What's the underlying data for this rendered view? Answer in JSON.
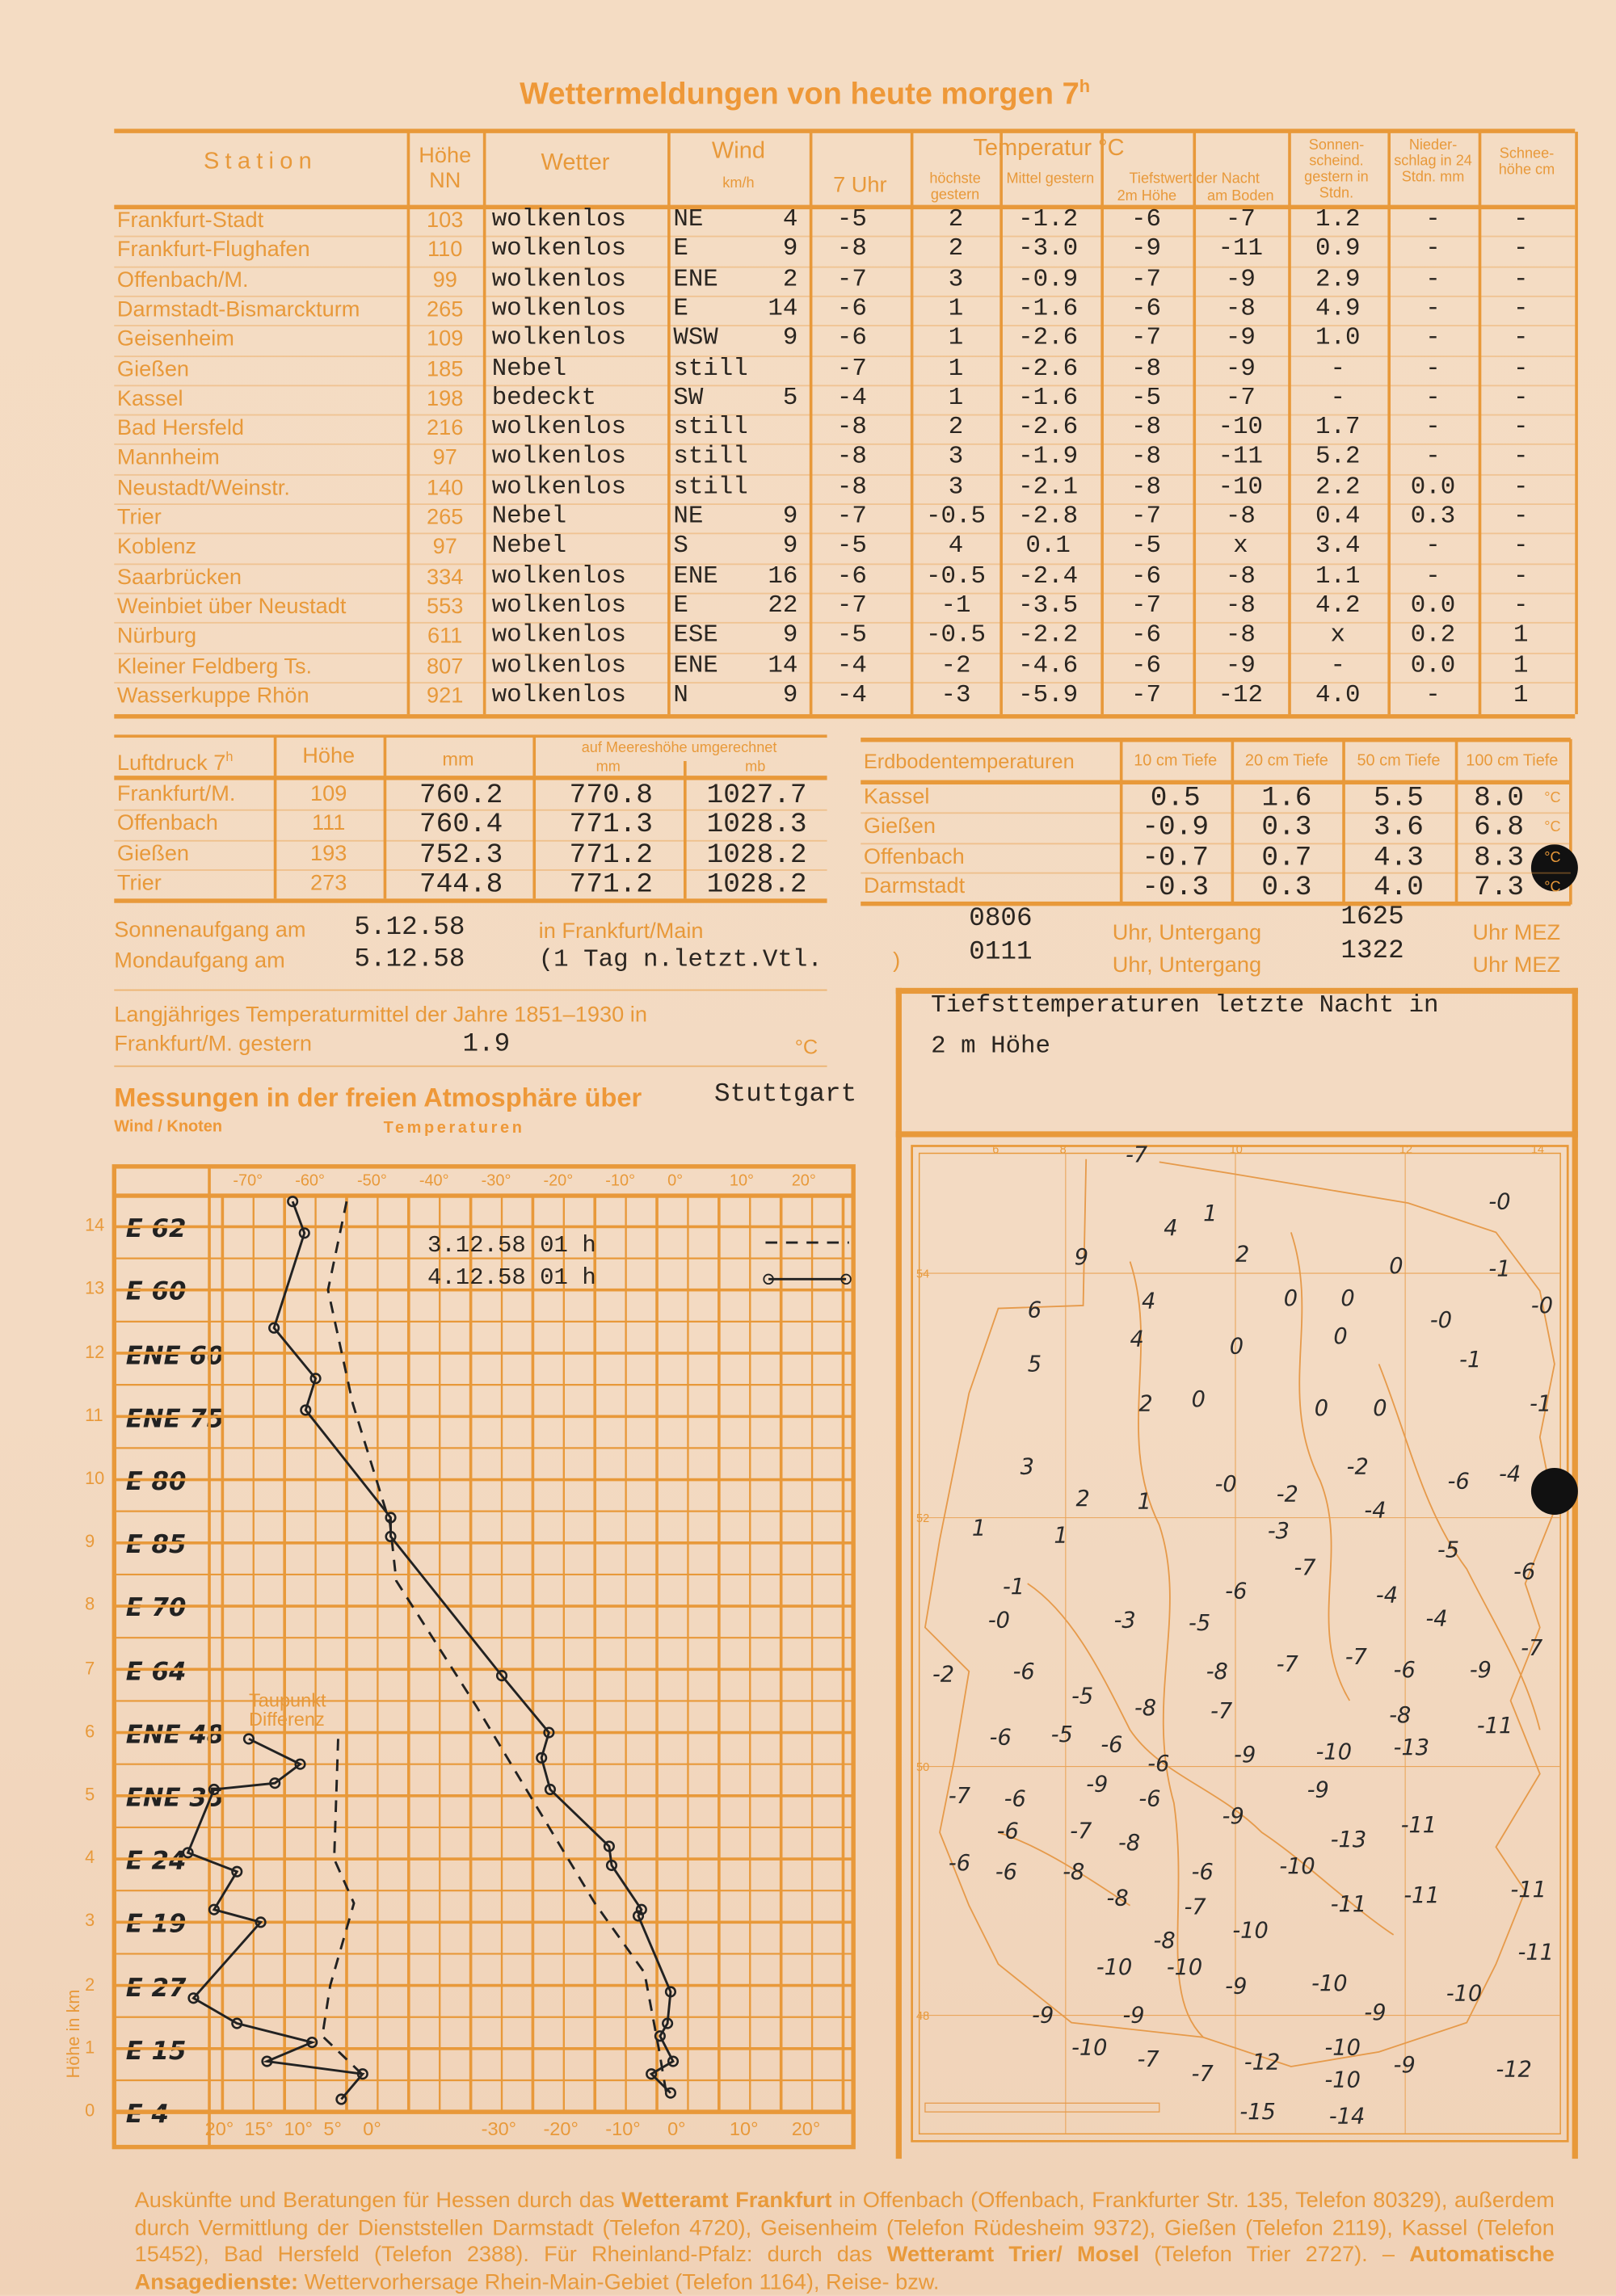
{
  "title": "Wettermeldungen von heute morgen 7",
  "title_sup": "h",
  "stations_table": {
    "headers": {
      "station": "Station",
      "hoehe": "Höhe NN",
      "wetter": "Wetter",
      "wind": "Wind",
      "wind_unit": "km/h",
      "temperatur": "Temperatur °C",
      "uhr7": "7 Uhr",
      "hoechste": "höchste gestern",
      "mittel": "Mittel gestern",
      "tiefstwert": "Tiefstwert der Nacht",
      "tief_2m": "2m Höhe",
      "tief_boden": "am Boden",
      "sonne": "Sonnen- scheind. gestern in Stdn.",
      "nieder": "Nieder- schlag in 24 Stdn. mm",
      "schnee": "Schnee- höhe cm"
    },
    "rows": [
      [
        "Frankfurt-Stadt",
        "103",
        "wolkenlos",
        "NE",
        "4",
        "-5",
        "2",
        "-1.2",
        "-6",
        "-7",
        "1.2",
        "-",
        "-"
      ],
      [
        "Frankfurt-Flughafen",
        "110",
        "wolkenlos",
        "E",
        "9",
        "-8",
        "2",
        "-3.0",
        "-9",
        "-11",
        "0.9",
        "-",
        "-"
      ],
      [
        "Offenbach/M.",
        "99",
        "wolkenlos",
        "ENE",
        "2",
        "-7",
        "3",
        "-0.9",
        "-7",
        "-9",
        "2.9",
        "-",
        "-"
      ],
      [
        "Darmstadt-Bismarckturm",
        "265",
        "wolkenlos",
        "E",
        "14",
        "-6",
        "1",
        "-1.6",
        "-6",
        "-8",
        "4.9",
        "-",
        "-"
      ],
      [
        "Geisenheim",
        "109",
        "wolkenlos",
        "WSW",
        "9",
        "-6",
        "1",
        "-2.6",
        "-7",
        "-9",
        "1.0",
        "-",
        "-"
      ],
      [
        "Gießen",
        "185",
        "Nebel",
        "still",
        "",
        "-7",
        "1",
        "-2.6",
        "-8",
        "-9",
        "-",
        "-",
        "-"
      ],
      [
        "Kassel",
        "198",
        "bedeckt",
        "SW",
        "5",
        "-4",
        "1",
        "-1.6",
        "-5",
        "-7",
        "-",
        "-",
        "-"
      ],
      [
        "Bad Hersfeld",
        "216",
        "wolkenlos",
        "still",
        "",
        "-8",
        "2",
        "-2.6",
        "-8",
        "-10",
        "1.7",
        "-",
        "-"
      ],
      [
        "Mannheim",
        "97",
        "wolkenlos",
        "still",
        "",
        "-8",
        "3",
        "-1.9",
        "-8",
        "-11",
        "5.2",
        "-",
        "-"
      ],
      [
        "Neustadt/Weinstr.",
        "140",
        "wolkenlos",
        "still",
        "",
        "-8",
        "3",
        "-2.1",
        "-8",
        "-10",
        "2.2",
        "0.0",
        "-"
      ],
      [
        "Trier",
        "265",
        "Nebel",
        "NE",
        "9",
        "-7",
        "-0.5",
        "-2.8",
        "-7",
        "-8",
        "0.4",
        "0.3",
        "-"
      ],
      [
        "Koblenz",
        "97",
        "Nebel",
        "S",
        "9",
        "-5",
        "4",
        "0.1",
        "-5",
        "x",
        "3.4",
        "-",
        "-"
      ],
      [
        "Saarbrücken",
        "334",
        "wolkenlos",
        "ENE",
        "16",
        "-6",
        "-0.5",
        "-2.4",
        "-6",
        "-8",
        "1.1",
        "-",
        "-"
      ],
      [
        "Weinbiet über Neustadt",
        "553",
        "wolkenlos",
        "E",
        "22",
        "-7",
        "-1",
        "-3.5",
        "-7",
        "-8",
        "4.2",
        "0.0",
        "-"
      ],
      [
        "Nürburg",
        "611",
        "wolkenlos",
        "ESE",
        "9",
        "-5",
        "-0.5",
        "-2.2",
        "-6",
        "-8",
        "x",
        "0.2",
        "1"
      ],
      [
        "Kleiner Feldberg Ts.",
        "807",
        "wolkenlos",
        "ENE",
        "14",
        "-4",
        "-2",
        "-4.6",
        "-6",
        "-9",
        "-",
        "0.0",
        "1"
      ],
      [
        "Wasserkuppe Rhön",
        "921",
        "wolkenlos",
        "N",
        "9",
        "-4",
        "-3",
        "-5.9",
        "-7",
        "-12",
        "4.0",
        "-",
        "1"
      ]
    ]
  },
  "luftdruck": {
    "headers": {
      "title": "Luftdruck 7",
      "title_sup": "h",
      "hoehe": "Höhe",
      "mm": "mm",
      "meer": "auf Meereshöhe umgerechnet",
      "meer_mm": "mm",
      "meer_mb": "mb"
    },
    "rows": [
      [
        "Frankfurt/M.",
        "109",
        "760.2",
        "770.8",
        "1027.7"
      ],
      [
        "Offenbach",
        "111",
        "760.4",
        "771.3",
        "1028.3"
      ],
      [
        "Gießen",
        "193",
        "752.3",
        "771.2",
        "1028.2"
      ],
      [
        "Trier",
        "273",
        "744.8",
        "771.2",
        "1028.2"
      ]
    ]
  },
  "erdboden": {
    "headers": {
      "title": "Erdbodentemperaturen",
      "t10": "10 cm Tiefe",
      "t20": "20 cm Tiefe",
      "t50": "50 cm Tiefe",
      "t100": "100 cm Tiefe"
    },
    "unit": "°C",
    "rows": [
      [
        "Kassel",
        "0.5",
        "1.6",
        "5.5",
        "8.0"
      ],
      [
        "Gießen",
        "-0.9",
        "0.3",
        "3.6",
        "6.8"
      ],
      [
        "Offenbach",
        "-0.7",
        "0.7",
        "4.3",
        "8.3"
      ],
      [
        "Darmstadt",
        "-0.3",
        "0.3",
        "4.0",
        "7.3"
      ]
    ]
  },
  "sun_moon": {
    "sonnenaufgang_label": "Sonnenaufgang am",
    "sonnenaufgang_date": "5.12.58",
    "in_frankfurt": "in Frankfurt/Main",
    "sun_rise": "0806",
    "untergang_label": "Uhr, Untergang",
    "sun_set": "1625",
    "mez": "Uhr MEZ",
    "mondaufgang_label": "Mondaufgang am",
    "mondaufgang_date": "5.12.58",
    "mond_note": "(1 Tag n.letzt.Vtl.",
    "mond_note_close": ")",
    "moon_rise": "0111",
    "moon_set": "1322"
  },
  "langjaehrig": {
    "line1": "Langjähriges Temperaturmittel der Jahre 1851–1930 in",
    "line2": "Frankfurt/M. gestern",
    "value": "1.9",
    "unit": "°C"
  },
  "atmosphere": {
    "title": "Messungen in der freien Atmosphäre über",
    "place": "Stuttgart",
    "wind_label": "Wind / Knoten",
    "temp_label": "Temperaturen",
    "taupunkt_label": "Taupunkt Differenz",
    "height_label": "Höhe in km",
    "legend_dashed": "3.12.58 01 h",
    "legend_solid": "4.12.58 01 h",
    "top_ticks": [
      "-70°",
      "-60°",
      "-50°",
      "-40°",
      "-30°",
      "-20°",
      "-10°",
      "0°",
      "10°",
      "20°"
    ],
    "bottom_ticks_dew": [
      "20°",
      "15°",
      "10°",
      "5°",
      "0°"
    ],
    "bottom_ticks_temp": [
      "-30°",
      "-20°",
      "-10°",
      "0°",
      "10°",
      "20°"
    ],
    "height_ticks": [
      "0",
      "1",
      "2",
      "3",
      "4",
      "5",
      "6",
      "7",
      "8",
      "9",
      "10",
      "11",
      "12",
      "13",
      "14"
    ],
    "winds": [
      "E 62",
      "E 60",
      "ENE 60",
      "ENE 75",
      "E 80",
      "E 85",
      "E 70",
      "E 64",
      "ENE 48",
      "ENE 35",
      "E 24",
      "E 19",
      "E 27",
      "E 15",
      "E 4"
    ],
    "colors": {
      "grid": "#e8993a",
      "ink": "#222222"
    },
    "profile_solid_temperature": [
      [
        14.4,
        -63.7
      ],
      [
        13.9,
        -61.8
      ],
      [
        12.4,
        -66.7
      ],
      [
        11.6,
        -60
      ],
      [
        11.1,
        -61.6
      ],
      [
        9.4,
        -47.9
      ],
      [
        9.1,
        -47.9
      ],
      [
        6.9,
        -30
      ],
      [
        6,
        -22.4
      ],
      [
        5.6,
        -23.6
      ],
      [
        5.1,
        -22.2
      ],
      [
        4.2,
        -12.7
      ],
      [
        3.9,
        -12.3
      ],
      [
        3.2,
        -7.5
      ],
      [
        3.1,
        -8
      ],
      [
        1.9,
        -2.8
      ],
      [
        1.4,
        -3.3
      ],
      [
        1.2,
        -4.5
      ],
      [
        0.8,
        -2.4
      ],
      [
        0.6,
        -5.9
      ],
      [
        0.3,
        -2.8
      ]
    ],
    "profile_dashed_temperature": [
      [
        14.4,
        -55
      ],
      [
        13,
        -58
      ],
      [
        11.2,
        -54
      ],
      [
        9.3,
        -48
      ],
      [
        8.4,
        -47
      ],
      [
        6.4,
        -34
      ],
      [
        4.7,
        -23.6
      ],
      [
        3.3,
        -15
      ],
      [
        2.2,
        -7
      ],
      [
        1,
        -4.7
      ],
      [
        0.3,
        -3.5
      ]
    ],
    "profile_solid_dewpoint_diff": [
      [
        5.9,
        16.3
      ],
      [
        5.5,
        9.8
      ],
      [
        5.2,
        13
      ],
      [
        5.1,
        20.7
      ],
      [
        4.1,
        24
      ],
      [
        3.8,
        17.8
      ],
      [
        3.2,
        20.7
      ],
      [
        3,
        14.8
      ],
      [
        1.8,
        23.3
      ],
      [
        1.4,
        17.8
      ],
      [
        1.1,
        8.3
      ],
      [
        0.8,
        14
      ],
      [
        0.6,
        1.9
      ],
      [
        0.2,
        4.6
      ]
    ],
    "profile_dashed_dewpoint_diff": [
      [
        5.9,
        5
      ],
      [
        4,
        5.5
      ],
      [
        3.3,
        3
      ],
      [
        2,
        6
      ],
      [
        1.2,
        7
      ],
      [
        0.6,
        2
      ]
    ]
  },
  "map": {
    "title_line1": "Tiefsttemperaturen letzte Nacht in",
    "title_line2": "2 m Höhe",
    "lon_ticks": [
      "6",
      "8",
      "10",
      "12",
      "14"
    ],
    "lat_ticks": [
      "54",
      "52",
      "50",
      "48"
    ],
    "values": [
      "-7",
      "4",
      "1",
      "9",
      "2",
      "0",
      "-0",
      "-1",
      "6",
      "4",
      "0",
      "0",
      "-0",
      "-0",
      "4",
      "0",
      "0",
      "-1",
      "5",
      "2",
      "0",
      "0",
      "0",
      "-1",
      "3",
      "-2",
      "-6",
      "-4",
      "2",
      "1",
      "-0",
      "-2",
      "-4",
      "1",
      "1",
      "-3",
      "-5",
      "-7",
      "-6",
      "-1",
      "-6",
      "-4",
      "-0",
      "-3",
      "-5",
      "-4",
      "-2",
      "-6",
      "-8",
      "-7",
      "-7",
      "-6",
      "-9",
      "-7",
      "-5",
      "-8",
      "-7",
      "-8",
      "-11",
      "-6",
      "-5",
      "-6",
      "-6",
      "-9",
      "-10",
      "-13",
      "-9",
      "-7",
      "-6",
      "-6",
      "-9",
      "-9",
      "-11",
      "-6",
      "-7",
      "-8",
      "-13",
      "-6",
      "-6",
      "-8",
      "-6",
      "-10",
      "-11",
      "-11",
      "-11",
      "-8",
      "-7",
      "-10",
      "-8",
      "-10",
      "-10",
      "-9",
      "-10",
      "-9",
      "-10",
      "-11",
      "-9",
      "-9",
      "-10",
      "-7",
      "-7",
      "-12",
      "-10",
      "-10",
      "-9",
      "-12",
      "-15",
      "-14"
    ]
  },
  "footer": {
    "p1": "Auskünfte und Beratungen für Hessen durch das ",
    "b1": "Wetteramt Frankfurt",
    "p2": " in Offenbach (Offenbach, Frankfurter Str. 135, Telefon 80329), außerdem durch Vermittlung der Dienststellen Darmstadt (Telefon 4720), Geisenheim (Telefon Rüdesheim 9372), Gießen (Telefon 2119), Kassel (Telefon 15452), Bad Hersfeld (Telefon 2388). Für Rheinland-Pfalz: durch das ",
    "b2": "Wetteramt Trier/ Mosel",
    "p3": " (Telefon Trier 2727). – ",
    "b3": "Automatische Ansagedienste:",
    "p4": " Wettervorhersage Rhein-Main-Gebiet (Telefon 1164), Reise- bzw."
  },
  "colors": {
    "paper": "#f3dac2",
    "orange": "#e8993a",
    "ink": "#2a2520"
  }
}
